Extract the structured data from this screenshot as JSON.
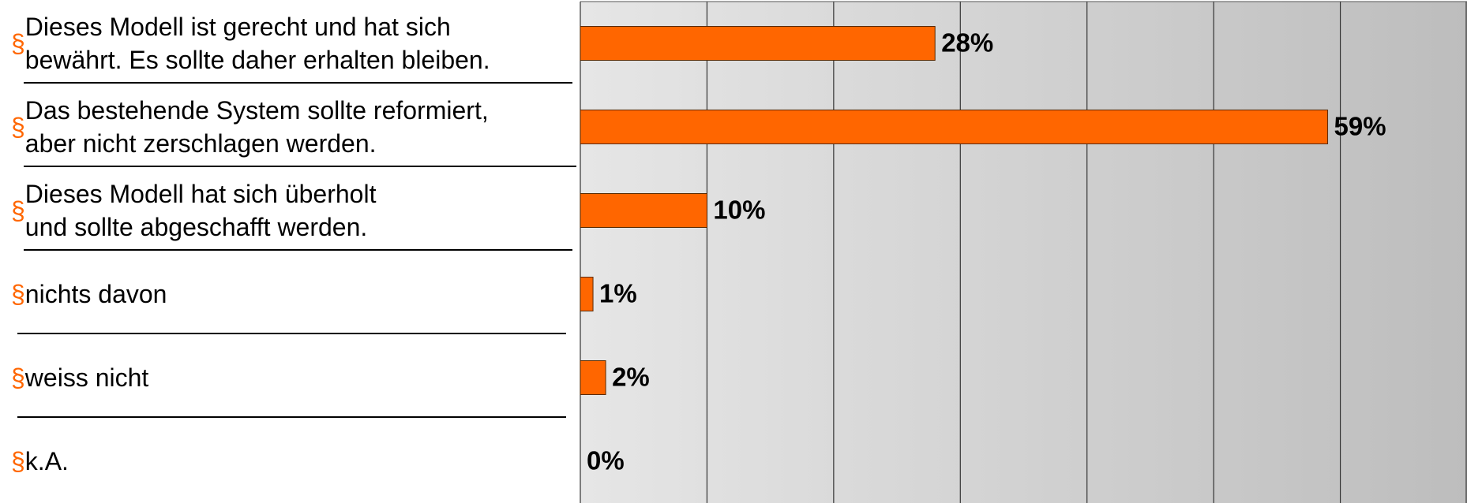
{
  "chart_data": {
    "type": "bar",
    "orientation": "horizontal",
    "bullet": "§",
    "categories": [
      "Dieses Modell ist gerecht und hat sich\n bewährt. Es sollte daher erhalten bleiben.",
      "Das bestehende System sollte reformiert,\n aber nicht zerschlagen werden.",
      "Dieses Modell hat sich überholt\n und sollte abgeschafft werden.",
      "nichts davon",
      "weiss nicht",
      "k.A."
    ],
    "values": [
      28,
      59,
      10,
      1,
      2,
      0
    ],
    "value_labels": [
      "28%",
      "59%",
      "10%",
      "1%",
      "2%",
      "0%"
    ],
    "color": "#ff6600",
    "xlim": [
      0,
      70
    ],
    "xticks": [
      0,
      10,
      20,
      30,
      40,
      50,
      60,
      70
    ],
    "grid": true
  }
}
